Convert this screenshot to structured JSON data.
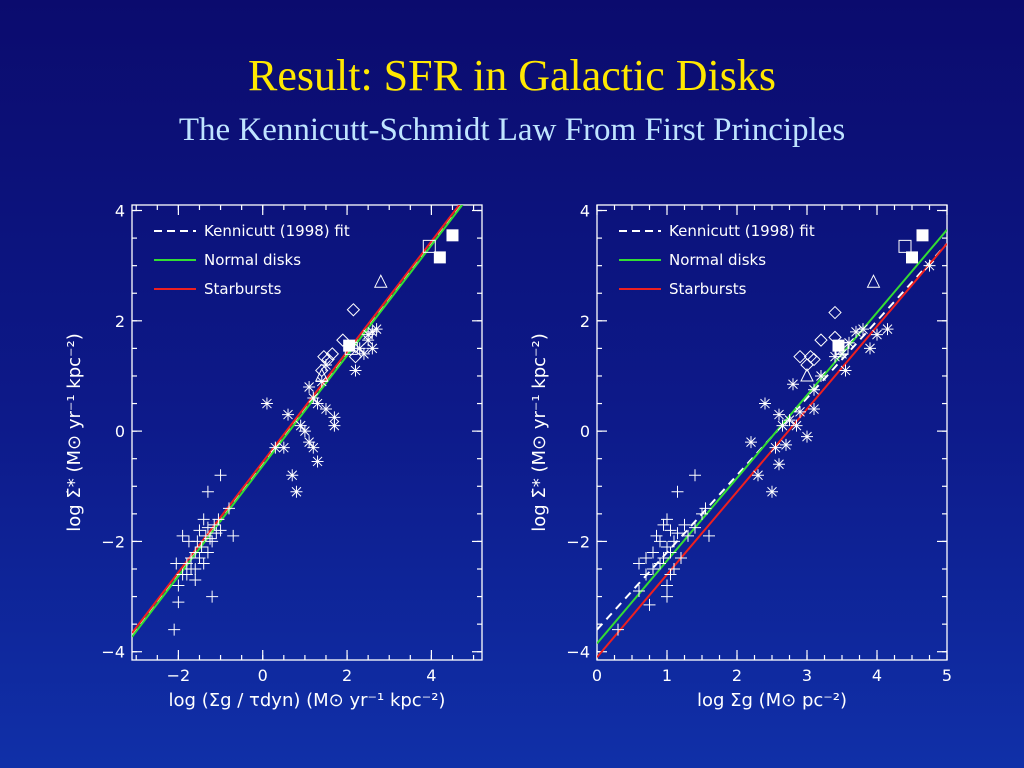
{
  "title": "Result: SFR in Galactic Disks",
  "subtitle": "The Kennicutt-Schmidt Law From First Principles",
  "colors": {
    "title": "#ffe800",
    "subtitle": "#bfe4ff",
    "kennicutt": "#ffffff",
    "normal": "#33dd33",
    "starburst": "#ee2020"
  },
  "chart_data": [
    {
      "type": "scatter",
      "xlabel": "log (Σg / τdyn) (M⊙ yr⁻¹ kpc⁻²)",
      "ylabel": "log Σ̇* (M⊙ yr⁻¹ kpc⁻²)",
      "xlim": [
        -3.1,
        5.2
      ],
      "ylim": [
        -4.15,
        4.1
      ],
      "xticks": [
        -2,
        0,
        2,
        4
      ],
      "yticks": [
        -4,
        -2,
        0,
        2,
        4
      ],
      "xtick_labels": [
        "−2",
        "0",
        "2",
        "4"
      ],
      "ytick_labels": [
        "−4",
        "−2",
        "0",
        "2",
        "4"
      ],
      "legend": {
        "position": "top-left",
        "entries": [
          "Kennicutt (1998) fit",
          "Normal disks",
          "Starbursts"
        ]
      },
      "lines": [
        {
          "name": "Kennicutt (1998) fit",
          "style": "dashed",
          "color": "#ffffff",
          "slope": 1.0,
          "intercept": -0.6
        },
        {
          "name": "Normal disks",
          "style": "solid",
          "color": "#33dd33",
          "slope": 1.0,
          "intercept": -0.63
        },
        {
          "name": "Starbursts",
          "style": "solid",
          "color": "#ee2020",
          "slope": 1.0,
          "intercept": -0.56
        }
      ],
      "points": [
        {
          "m": "plus",
          "pts": [
            [
              -2.1,
              -3.6
            ],
            [
              -2.0,
              -3.1
            ],
            [
              -2.0,
              -2.8
            ],
            [
              -1.9,
              -2.6
            ],
            [
              -1.8,
              -2.4
            ],
            [
              -1.8,
              -2.6
            ],
            [
              -1.7,
              -2.3
            ],
            [
              -1.7,
              -2.5
            ],
            [
              -1.6,
              -2.2
            ],
            [
              -1.6,
              -2.5
            ],
            [
              -1.55,
              -2.0
            ],
            [
              -1.5,
              -2.3
            ],
            [
              -1.5,
              -1.8
            ],
            [
              -1.45,
              -2.1
            ],
            [
              -1.4,
              -2.4
            ],
            [
              -1.4,
              -1.6
            ],
            [
              -1.35,
              -1.9
            ],
            [
              -1.3,
              -2.2
            ],
            [
              -1.3,
              -1.75
            ],
            [
              -1.25,
              -1.95
            ],
            [
              -1.2,
              -2.0
            ],
            [
              -1.2,
              -3.0
            ],
            [
              -1.15,
              -1.7
            ],
            [
              -1.1,
              -1.85
            ],
            [
              -1.05,
              -1.6
            ],
            [
              -1.0,
              -1.8
            ],
            [
              -1.0,
              -0.8
            ],
            [
              -1.3,
              -1.1
            ],
            [
              -0.8,
              -1.4
            ],
            [
              -0.7,
              -1.9
            ],
            [
              -1.9,
              -1.9
            ],
            [
              -1.6,
              -2.7
            ],
            [
              -1.75,
              -2.0
            ],
            [
              -2.05,
              -2.4
            ]
          ]
        },
        {
          "m": "star",
          "pts": [
            [
              0.1,
              0.5
            ],
            [
              0.3,
              -0.3
            ],
            [
              0.5,
              -0.3
            ],
            [
              0.6,
              0.3
            ],
            [
              0.7,
              -0.8
            ],
            [
              0.8,
              -1.1
            ],
            [
              0.9,
              0.1
            ],
            [
              1.0,
              0.0
            ],
            [
              1.1,
              0.8
            ],
            [
              1.1,
              -0.2
            ],
            [
              1.2,
              0.6
            ],
            [
              1.2,
              -0.3
            ],
            [
              1.3,
              0.5
            ],
            [
              1.3,
              -0.55
            ],
            [
              1.4,
              0.9
            ],
            [
              1.5,
              1.2
            ],
            [
              1.5,
              0.4
            ],
            [
              1.7,
              0.25
            ],
            [
              1.7,
              0.1
            ],
            [
              2.2,
              1.1
            ],
            [
              2.3,
              1.5
            ],
            [
              2.4,
              1.4
            ],
            [
              2.5,
              1.65
            ],
            [
              2.6,
              1.5
            ],
            [
              2.6,
              1.8
            ],
            [
              2.7,
              1.85
            ],
            [
              2.5,
              1.75
            ]
          ]
        },
        {
          "m": "diamond",
          "pts": [
            [
              1.4,
              1.1
            ],
            [
              1.45,
              1.35
            ],
            [
              1.55,
              1.3
            ],
            [
              1.65,
              1.4
            ],
            [
              1.9,
              1.65
            ],
            [
              2.15,
              2.2
            ],
            [
              2.2,
              1.35
            ]
          ]
        },
        {
          "m": "triangle",
          "pts": [
            [
              1.4,
              1.0
            ],
            [
              2.8,
              2.7
            ]
          ]
        },
        {
          "m": "open-square",
          "pts": [
            [
              2.1,
              1.5
            ],
            [
              3.95,
              3.35
            ]
          ]
        },
        {
          "m": "filled-square",
          "pts": [
            [
              2.05,
              1.55
            ],
            [
              4.2,
              3.15
            ],
            [
              4.5,
              3.55
            ]
          ]
        }
      ]
    },
    {
      "type": "scatter",
      "xlabel": "log Σg (M⊙ pc⁻²)",
      "ylabel": "log Σ̇* (M⊙ yr⁻¹ kpc⁻²)",
      "xlim": [
        0,
        5
      ],
      "ylim": [
        -4.15,
        4.1
      ],
      "xticks": [
        0,
        1,
        2,
        3,
        4,
        5
      ],
      "yticks": [
        -4,
        -2,
        0,
        2,
        4
      ],
      "xtick_labels": [
        "0",
        "1",
        "2",
        "3",
        "4",
        "5"
      ],
      "ytick_labels": [
        "−4",
        "−2",
        "0",
        "2",
        "4"
      ],
      "legend": {
        "position": "top-left",
        "entries": [
          "Kennicutt (1998) fit",
          "Normal disks",
          "Starbursts"
        ]
      },
      "lines": [
        {
          "name": "Kennicutt (1998) fit",
          "style": "dashed",
          "color": "#ffffff",
          "slope": 1.4,
          "intercept": -3.6
        },
        {
          "name": "Normal disks",
          "style": "solid",
          "color": "#33dd33",
          "slope": 1.5,
          "intercept": -3.85
        },
        {
          "name": "Starbursts",
          "style": "solid",
          "color": "#ee2020",
          "slope": 1.5,
          "intercept": -4.1
        }
      ],
      "points": [
        {
          "m": "plus",
          "pts": [
            [
              0.3,
              -3.6
            ],
            [
              0.6,
              -2.9
            ],
            [
              0.7,
              -2.3
            ],
            [
              0.7,
              -2.6
            ],
            [
              0.8,
              -2.2
            ],
            [
              0.8,
              -2.5
            ],
            [
              0.85,
              -1.9
            ],
            [
              0.9,
              -2.4
            ],
            [
              0.9,
              -2.0
            ],
            [
              0.95,
              -1.7
            ],
            [
              0.95,
              -2.3
            ],
            [
              1.0,
              -2.1
            ],
            [
              1.0,
              -1.6
            ],
            [
              1.0,
              -2.8
            ],
            [
              1.0,
              -3.0
            ],
            [
              1.05,
              -1.8
            ],
            [
              1.05,
              -2.2
            ],
            [
              1.1,
              -2.0
            ],
            [
              1.1,
              -2.5
            ],
            [
              1.15,
              -1.85
            ],
            [
              1.15,
              -1.1
            ],
            [
              1.2,
              -2.3
            ],
            [
              1.25,
              -1.7
            ],
            [
              1.3,
              -1.9
            ],
            [
              1.4,
              -1.75
            ],
            [
              1.4,
              -0.8
            ],
            [
              1.5,
              -1.5
            ],
            [
              1.55,
              -1.4
            ],
            [
              1.6,
              -1.9
            ],
            [
              0.6,
              -2.4
            ],
            [
              0.75,
              -3.15
            ],
            [
              1.05,
              -2.6
            ]
          ]
        },
        {
          "m": "star",
          "pts": [
            [
              2.2,
              -0.2
            ],
            [
              2.3,
              -0.8
            ],
            [
              2.4,
              0.5
            ],
            [
              2.5,
              -1.1
            ],
            [
              2.55,
              -0.3
            ],
            [
              2.6,
              -0.6
            ],
            [
              2.6,
              0.3
            ],
            [
              2.65,
              0.1
            ],
            [
              2.7,
              -0.25
            ],
            [
              2.75,
              0.2
            ],
            [
              2.8,
              0.85
            ],
            [
              2.85,
              0.1
            ],
            [
              2.9,
              0.35
            ],
            [
              3.0,
              -0.1
            ],
            [
              3.1,
              0.75
            ],
            [
              3.1,
              0.4
            ],
            [
              3.2,
              1.0
            ],
            [
              3.4,
              1.35
            ],
            [
              3.5,
              1.4
            ],
            [
              3.55,
              1.1
            ],
            [
              3.6,
              1.6
            ],
            [
              3.7,
              1.8
            ],
            [
              3.8,
              1.85
            ],
            [
              3.9,
              1.5
            ],
            [
              4.0,
              1.75
            ],
            [
              4.15,
              1.85
            ],
            [
              4.75,
              3.0
            ]
          ]
        },
        {
          "m": "diamond",
          "pts": [
            [
              2.9,
              1.35
            ],
            [
              3.0,
              1.2
            ],
            [
              3.05,
              1.35
            ],
            [
              3.1,
              1.3
            ],
            [
              3.2,
              1.65
            ],
            [
              3.4,
              2.15
            ],
            [
              3.4,
              1.7
            ]
          ]
        },
        {
          "m": "triangle",
          "pts": [
            [
              3.0,
              1.0
            ],
            [
              3.95,
              2.7
            ]
          ]
        },
        {
          "m": "open-square",
          "pts": [
            [
              3.5,
              1.5
            ],
            [
              4.4,
              3.35
            ]
          ]
        },
        {
          "m": "filled-square",
          "pts": [
            [
              3.45,
              1.55
            ],
            [
              4.5,
              3.15
            ],
            [
              4.65,
              3.55
            ]
          ]
        }
      ]
    }
  ]
}
